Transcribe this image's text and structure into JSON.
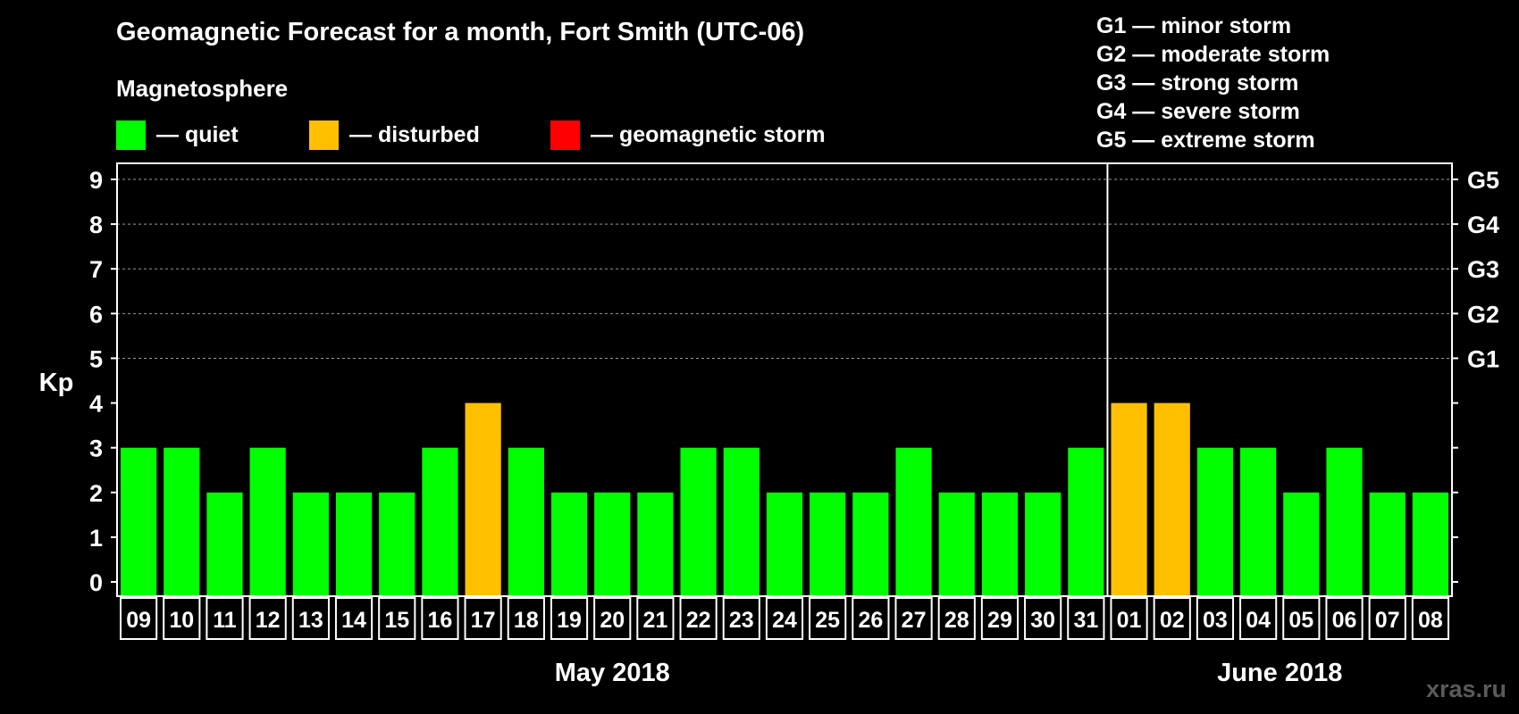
{
  "colors": {
    "background": "#000000",
    "quiet": "#00FF00",
    "disturbed": "#FFC000",
    "storm": "#FF0000",
    "gridline": "#9a9a9a",
    "watermark": "#5a5a5a"
  },
  "header": {
    "title": "Geomagnetic Forecast for a month, Fort Smith (UTC-06)",
    "subtitle": "Magnetosphere"
  },
  "legend": [
    {
      "label": "— quiet",
      "color_key": "quiet"
    },
    {
      "label": "— disturbed",
      "color_key": "disturbed"
    },
    {
      "label": "— geomagnetic storm",
      "color_key": "storm"
    }
  ],
  "storm_scale": [
    "G1 — minor storm",
    "G2 — moderate storm",
    "G3 — strong storm",
    "G4 — severe storm",
    "G5 — extreme storm"
  ],
  "watermark": "xras.ru",
  "chart_data": {
    "type": "bar",
    "title": "Geomagnetic Forecast for a month, Fort Smith (UTC-06)",
    "ylabel": "Kp",
    "ylim": [
      0,
      9
    ],
    "yticks": [
      0,
      1,
      2,
      3,
      4,
      5,
      6,
      7,
      8,
      9
    ],
    "right_axis_labels": [
      {
        "value": 5,
        "label": "G1"
      },
      {
        "value": 6,
        "label": "G2"
      },
      {
        "value": 7,
        "label": "G3"
      },
      {
        "value": 8,
        "label": "G4"
      },
      {
        "value": 9,
        "label": "G5"
      }
    ],
    "gridlines_at": [
      5,
      6,
      7,
      8,
      9
    ],
    "categories": [
      "09",
      "10",
      "11",
      "12",
      "13",
      "14",
      "15",
      "16",
      "17",
      "18",
      "19",
      "20",
      "21",
      "22",
      "23",
      "24",
      "25",
      "26",
      "27",
      "28",
      "29",
      "30",
      "31",
      "01",
      "02",
      "03",
      "04",
      "05",
      "06",
      "07",
      "08"
    ],
    "values": [
      3,
      3,
      2,
      3,
      2,
      2,
      2,
      3,
      4,
      3,
      2,
      2,
      2,
      3,
      3,
      2,
      2,
      2,
      3,
      2,
      2,
      2,
      3,
      4,
      4,
      3,
      3,
      2,
      3,
      2,
      2
    ],
    "status": [
      "quiet",
      "quiet",
      "quiet",
      "quiet",
      "quiet",
      "quiet",
      "quiet",
      "quiet",
      "disturbed",
      "quiet",
      "quiet",
      "quiet",
      "quiet",
      "quiet",
      "quiet",
      "quiet",
      "quiet",
      "quiet",
      "quiet",
      "quiet",
      "quiet",
      "quiet",
      "quiet",
      "disturbed",
      "disturbed",
      "quiet",
      "quiet",
      "quiet",
      "quiet",
      "quiet",
      "quiet"
    ],
    "months": [
      {
        "label": "May 2018",
        "start_index": 0,
        "end_index": 22
      },
      {
        "label": "June 2018",
        "start_index": 23,
        "end_index": 30
      }
    ]
  }
}
